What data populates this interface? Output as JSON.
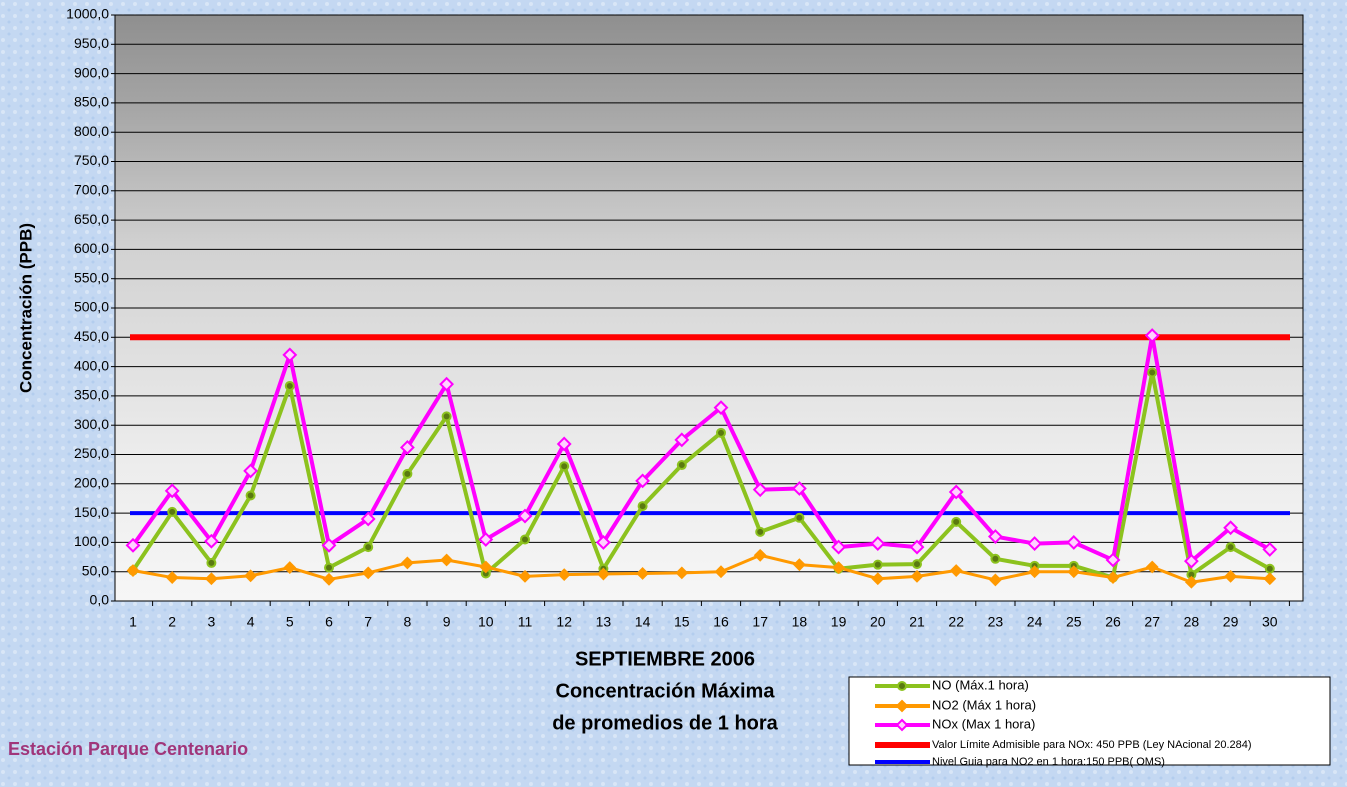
{
  "chart_data": {
    "type": "line",
    "title_lines": [
      "SEPTIEMBRE 2006",
      "Concentración Máxima",
      "de promedios de 1 hora"
    ],
    "y_label": "Concentración  (PPB)",
    "station": "Estación Parque Centenario",
    "categories": [
      "1",
      "2",
      "3",
      "4",
      "5",
      "6",
      "7",
      "8",
      "9",
      "10",
      "11",
      "12",
      "13",
      "14",
      "15",
      "16",
      "17",
      "18",
      "19",
      "20",
      "21",
      "22",
      "23",
      "24",
      "25",
      "26",
      "27",
      "28",
      "29",
      "30"
    ],
    "series": [
      {
        "name": "NO (Máx.1 hora)",
        "color": "#8cc21e",
        "marker": "circle",
        "values": [
          52,
          152,
          65,
          180,
          367,
          57,
          92,
          217,
          315,
          47,
          105,
          230,
          55,
          162,
          232,
          287,
          118,
          142,
          55,
          62,
          63,
          135,
          72,
          60,
          60,
          40,
          390,
          45,
          92,
          55
        ]
      },
      {
        "name": "NO2 (Máx 1 hora)",
        "color": "#ff9900",
        "marker": "diamond",
        "values": [
          52,
          40,
          38,
          43,
          57,
          37,
          48,
          65,
          70,
          58,
          42,
          45,
          46,
          47,
          48,
          50,
          78,
          62,
          57,
          38,
          42,
          52,
          36,
          50,
          50,
          40,
          58,
          32,
          42,
          38
        ]
      },
      {
        "name": "NOx (Max 1 hora)",
        "color": "#ff00ff",
        "marker": "hollow-diamond",
        "values": [
          95,
          188,
          102,
          222,
          420,
          95,
          140,
          262,
          370,
          105,
          145,
          268,
          100,
          205,
          275,
          330,
          190,
          192,
          92,
          98,
          92,
          186,
          110,
          98,
          100,
          70,
          453,
          68,
          125,
          88
        ]
      }
    ],
    "reference_lines": [
      {
        "name": "Valor Límite Admisible para NOx: 450 PPB (Ley NAcional 20.284)",
        "value": 450,
        "color": "#ff0000"
      },
      {
        "name": "Nivel Guia para NO2 en 1 hora:150 PPB( OMS)",
        "value": 150,
        "color": "#0000ff"
      }
    ],
    "ylim": [
      0,
      1000
    ],
    "yticks": [
      {
        "value": 0,
        "label": "0,0"
      },
      {
        "value": 50,
        "label": "50,0"
      },
      {
        "value": 100,
        "label": "100,0"
      },
      {
        "value": 150,
        "label": "150,0"
      },
      {
        "value": 200,
        "label": "200,0"
      },
      {
        "value": 250,
        "label": "250,0"
      },
      {
        "value": 300,
        "label": "300,0"
      },
      {
        "value": 350,
        "label": "350,0"
      },
      {
        "value": 400,
        "label": "400,0"
      },
      {
        "value": 450,
        "label": "450,0"
      },
      {
        "value": 500,
        "label": "500,0"
      },
      {
        "value": 550,
        "label": "550,0"
      },
      {
        "value": 600,
        "label": "600,0"
      },
      {
        "value": 650,
        "label": "650,0"
      },
      {
        "value": 700,
        "label": "700,0"
      },
      {
        "value": 750,
        "label": "750,0"
      },
      {
        "value": 800,
        "label": "800,0"
      },
      {
        "value": 850,
        "label": "850,0"
      },
      {
        "value": 900,
        "label": "900,0"
      },
      {
        "value": 950,
        "label": "950,0"
      },
      {
        "value": 1000,
        "label": "1000,0"
      }
    ],
    "grid": true
  }
}
